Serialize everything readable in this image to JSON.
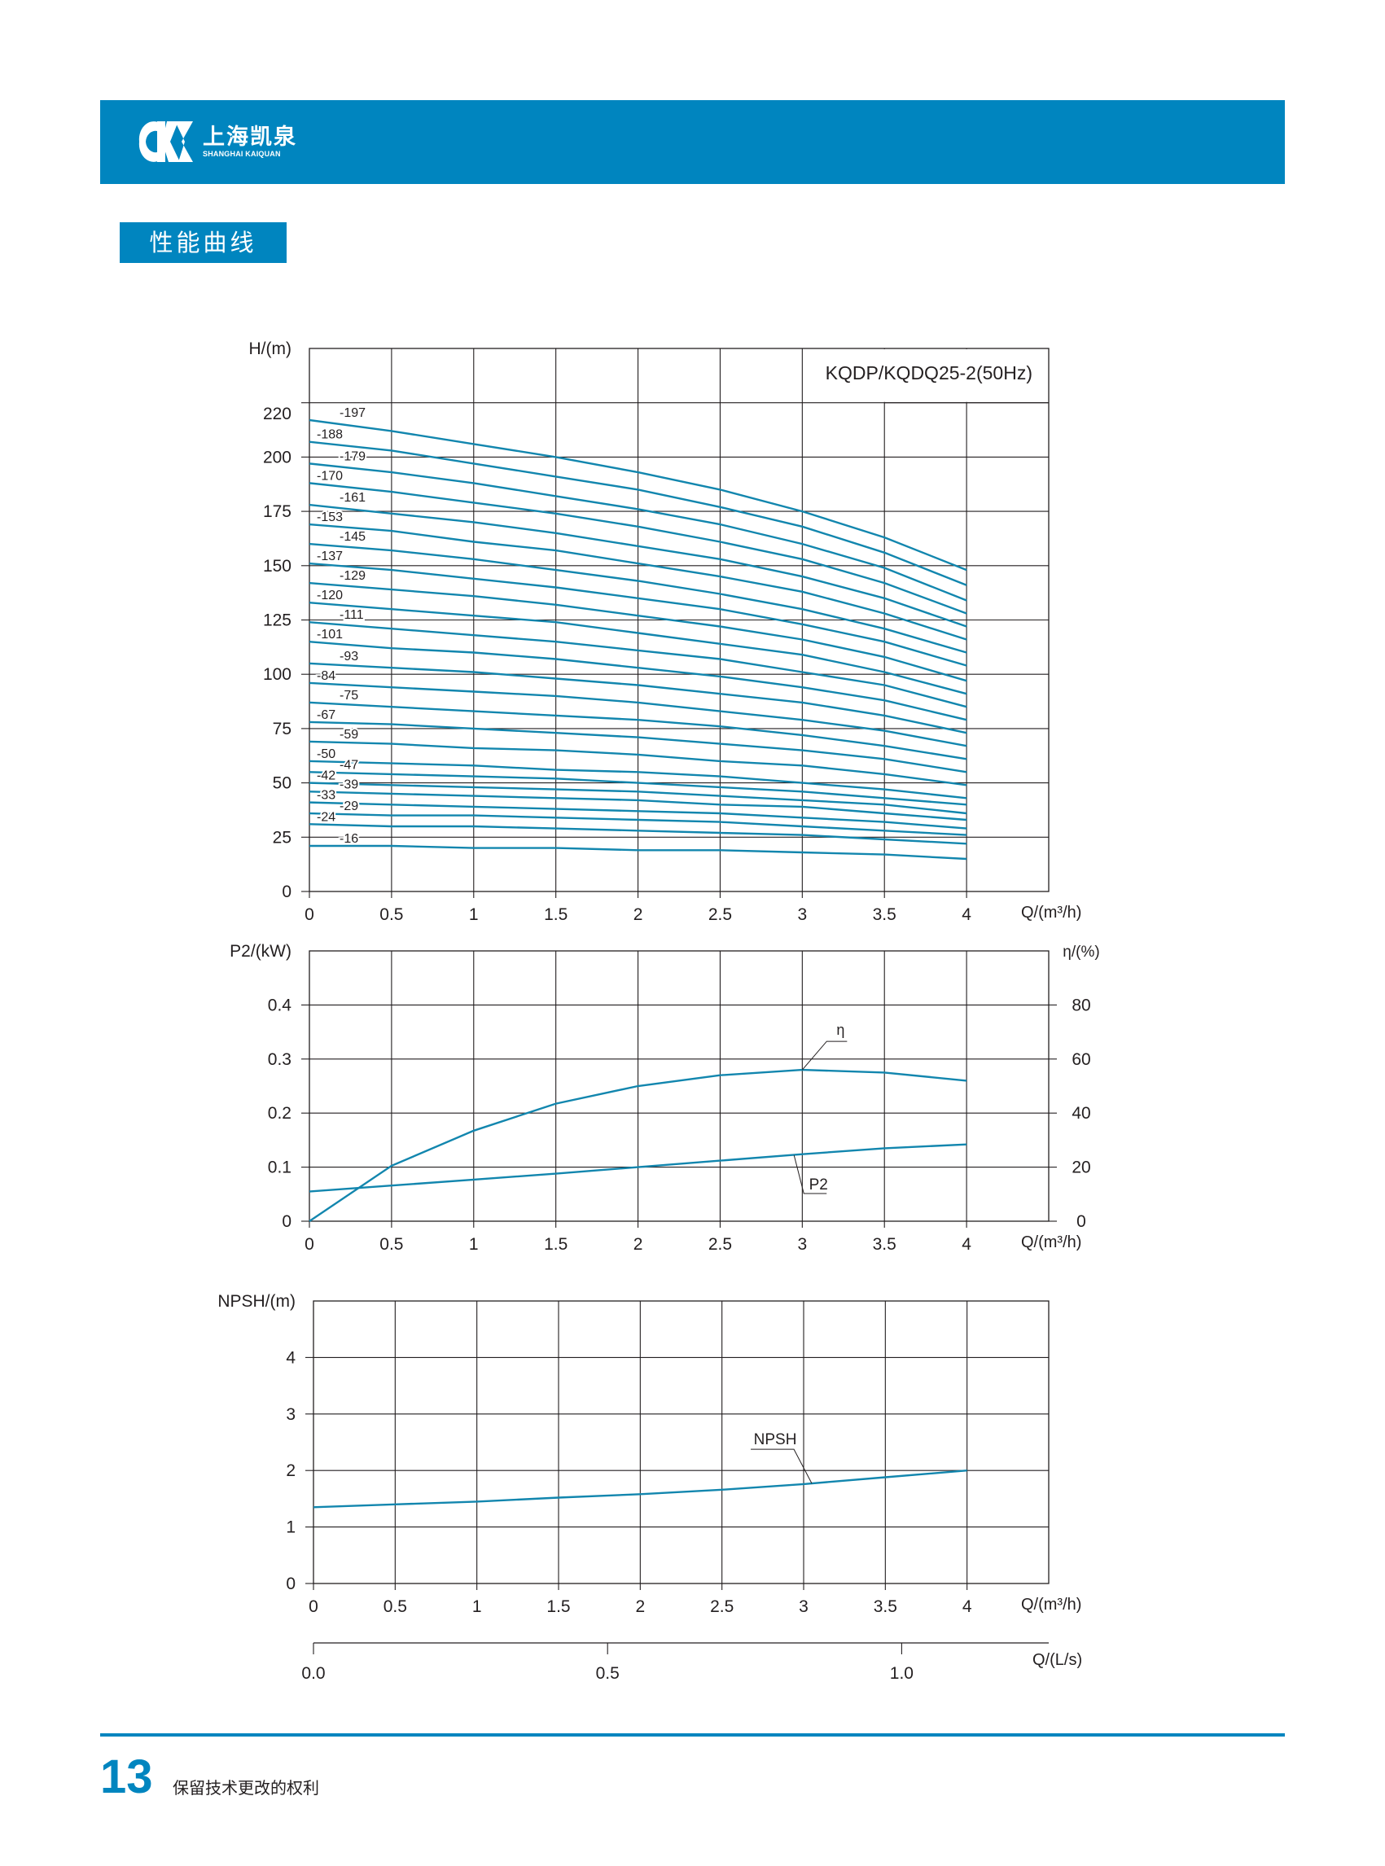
{
  "header": {
    "brand_cn": "上海凯泉",
    "brand_en": "SHANGHAI KAIQUAN",
    "accent_color": "#0085bf",
    "logo_icon": "kaiquan-logo-icon"
  },
  "section_title": "性能曲线",
  "footer": {
    "page_number": "13",
    "note": "保留技术更改的权利"
  },
  "chart_data": [
    {
      "type": "line",
      "title": "KQDP/KQDQ25-2(50Hz)",
      "xlabel": "Q/(m³/h)",
      "ylabel": "H/(m)",
      "xlim": [
        0,
        4.5
      ],
      "ylim": [
        0,
        250
      ],
      "x_ticks": [
        "0",
        "0.5",
        "1",
        "1.5",
        "2",
        "2.5",
        "3",
        "3.5",
        "4"
      ],
      "y_ticks": [
        "0",
        "25",
        "50",
        "75",
        "100",
        "125",
        "150",
        "175",
        "200",
        "220"
      ],
      "grid": true,
      "x": [
        0,
        0.5,
        1,
        1.5,
        2,
        2.5,
        3,
        3.5,
        4
      ],
      "series": [
        {
          "name": "-197",
          "values": [
            217,
            212,
            206,
            200,
            193,
            185,
            175,
            163,
            148
          ]
        },
        {
          "name": "-188",
          "values": [
            207,
            203,
            197,
            191,
            185,
            177,
            168,
            156,
            141
          ]
        },
        {
          "name": "-179",
          "values": [
            197,
            193,
            188,
            182,
            176,
            169,
            160,
            149,
            134
          ]
        },
        {
          "name": "-170",
          "values": [
            188,
            184,
            179,
            174,
            168,
            161,
            153,
            142,
            128
          ]
        },
        {
          "name": "-161",
          "values": [
            178,
            174,
            170,
            165,
            159,
            153,
            145,
            135,
            122
          ]
        },
        {
          "name": "-153",
          "values": [
            169,
            166,
            161,
            157,
            151,
            145,
            138,
            128,
            116
          ]
        },
        {
          "name": "-145",
          "values": [
            160,
            157,
            153,
            148,
            143,
            137,
            130,
            121,
            110
          ]
        },
        {
          "name": "-137",
          "values": [
            151,
            148,
            144,
            140,
            135,
            130,
            123,
            115,
            104
          ]
        },
        {
          "name": "-129",
          "values": [
            142,
            139,
            136,
            132,
            127,
            122,
            116,
            108,
            97
          ]
        },
        {
          "name": "-120",
          "values": [
            133,
            130,
            127,
            124,
            119,
            114,
            109,
            101,
            91
          ]
        },
        {
          "name": "-111",
          "values": [
            124,
            121,
            118,
            115,
            111,
            107,
            101,
            95,
            85
          ]
        },
        {
          "name": "-101",
          "values": [
            115,
            112,
            110,
            107,
            103,
            99,
            94,
            88,
            79
          ]
        },
        {
          "name": "-93",
          "values": [
            105,
            103,
            101,
            98,
            95,
            91,
            87,
            81,
            73
          ]
        },
        {
          "name": "-84",
          "values": [
            96,
            94,
            92,
            90,
            87,
            83,
            79,
            74,
            67
          ]
        },
        {
          "name": "-75",
          "values": [
            87,
            85,
            83,
            81,
            79,
            76,
            72,
            67,
            61
          ]
        },
        {
          "name": "-67",
          "values": [
            78,
            77,
            75,
            73,
            71,
            68,
            65,
            61,
            55
          ]
        },
        {
          "name": "-59",
          "values": [
            69,
            68,
            66,
            65,
            63,
            60,
            58,
            54,
            49
          ]
        },
        {
          "name": "-50",
          "values": [
            60,
            59,
            58,
            56,
            55,
            53,
            50,
            47,
            43
          ]
        },
        {
          "name": "-47",
          "values": [
            55,
            54,
            53,
            52,
            50,
            48,
            46,
            43,
            40
          ]
        },
        {
          "name": "-42",
          "values": [
            50,
            49,
            48,
            47,
            46,
            44,
            42,
            40,
            36
          ]
        },
        {
          "name": "-39",
          "values": [
            46,
            45,
            44,
            43,
            42,
            40,
            39,
            36,
            33
          ]
        },
        {
          "name": "-33",
          "values": [
            41,
            40,
            39,
            38,
            37,
            36,
            34,
            32,
            29
          ]
        },
        {
          "name": "-29",
          "values": [
            36,
            35,
            35,
            34,
            33,
            32,
            30,
            28,
            26
          ]
        },
        {
          "name": "-24",
          "values": [
            31,
            30,
            30,
            29,
            28,
            27,
            26,
            24,
            22
          ]
        },
        {
          "name": "-16",
          "values": [
            21,
            21,
            20,
            20,
            19,
            19,
            18,
            17,
            15
          ]
        }
      ]
    },
    {
      "type": "line",
      "xlabel": "Q/(m³/h)",
      "ylabel": "P2/(kW)",
      "y2label": "η/(%)",
      "xlim": [
        0,
        4.5
      ],
      "ylim": [
        0,
        0.5
      ],
      "y2lim": [
        0,
        100
      ],
      "x_ticks": [
        "0",
        "0.5",
        "1",
        "1.5",
        "2",
        "2.5",
        "3",
        "3.5",
        "4"
      ],
      "y_ticks": [
        "0",
        "0.1",
        "0.2",
        "0.3",
        "0.4"
      ],
      "y2_ticks": [
        "0",
        "20",
        "40",
        "60",
        "80"
      ],
      "grid": true,
      "x": [
        0,
        0.5,
        1,
        1.5,
        2,
        2.5,
        3,
        3.5,
        4
      ],
      "series": [
        {
          "name": "η",
          "axis": "right",
          "values": [
            0,
            20.5,
            33.5,
            43.5,
            50,
            54,
            56,
            55,
            52
          ]
        },
        {
          "name": "P2",
          "axis": "left",
          "values": [
            0.055,
            0.066,
            0.077,
            0.088,
            0.1,
            0.112,
            0.124,
            0.135,
            0.142
          ]
        }
      ]
    },
    {
      "type": "line",
      "xlabel": "Q/(m³/h)",
      "ylabel": "NPSH/(m)",
      "x2label": "Q/(L/s)",
      "xlim": [
        0,
        4.5
      ],
      "ylim": [
        0,
        5
      ],
      "x_ticks": [
        "0",
        "0.5",
        "1",
        "1.5",
        "2",
        "2.5",
        "3",
        "3.5",
        "4"
      ],
      "y_ticks": [
        "0",
        "1",
        "2",
        "3",
        "4"
      ],
      "x2_ticks": [
        "0.0",
        "0.5",
        "1.0"
      ],
      "grid": true,
      "x": [
        0,
        0.5,
        1,
        1.5,
        2,
        2.5,
        3,
        3.5,
        4
      ],
      "series": [
        {
          "name": "NPSH",
          "values": [
            1.35,
            1.4,
            1.45,
            1.52,
            1.58,
            1.66,
            1.76,
            1.88,
            2.0
          ]
        }
      ]
    }
  ]
}
